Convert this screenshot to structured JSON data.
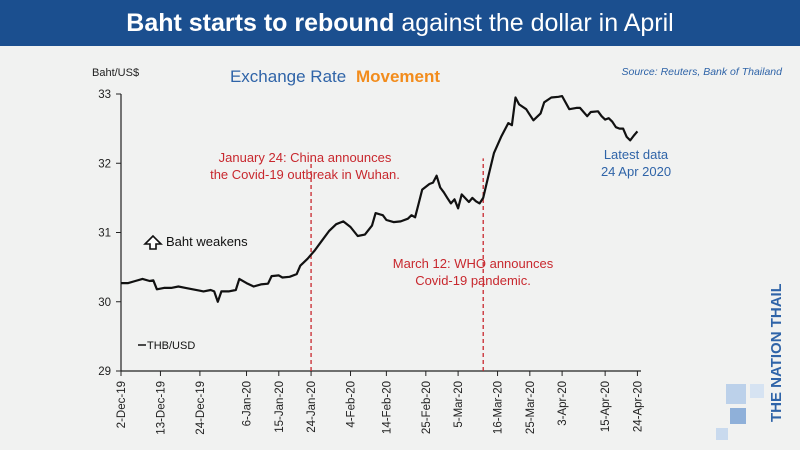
{
  "banner": {
    "title_bold": "Baht starts to rebound",
    "title_rest": "against the dollar in April",
    "background_color": "#1b4f8f"
  },
  "source": "Source: Reuters, Bank of Thailand",
  "logo_text": "THE NATION THAILAND",
  "chart_data": {
    "type": "line",
    "title_part1": "Exchange Rate",
    "title_part2": "Movement",
    "title_colors": [
      "#2f64a8",
      "#f28c1c"
    ],
    "ylabel": "Baht/US$",
    "ylim": [
      29,
      33
    ],
    "yticks": [
      29,
      30,
      31,
      32,
      33
    ],
    "xlim": [
      0,
      145
    ],
    "xticks": [
      {
        "d": 0,
        "label": "2-Dec-19"
      },
      {
        "d": 11,
        "label": "13-Dec-19"
      },
      {
        "d": 22,
        "label": "24-Dec-19"
      },
      {
        "d": 35,
        "label": "6-Jan-20"
      },
      {
        "d": 44,
        "label": "15-Jan-20"
      },
      {
        "d": 53,
        "label": "24-Jan-20"
      },
      {
        "d": 64,
        "label": "4-Feb-20"
      },
      {
        "d": 74,
        "label": "14-Feb-20"
      },
      {
        "d": 85,
        "label": "25-Feb-20"
      },
      {
        "d": 94,
        "label": "5-Mar-20"
      },
      {
        "d": 105,
        "label": "16-Mar-20"
      },
      {
        "d": 114,
        "label": "25-Mar-20"
      },
      {
        "d": 123,
        "label": "3-Apr-20"
      },
      {
        "d": 135,
        "label": "15-Apr-20"
      },
      {
        "d": 144,
        "label": "24-Apr-20"
      }
    ],
    "series": [
      {
        "name": "THB/USD",
        "color": "#111111",
        "points": [
          [
            0,
            30.27
          ],
          [
            2,
            30.27
          ],
          [
            4,
            30.3
          ],
          [
            6,
            30.33
          ],
          [
            8,
            30.3
          ],
          [
            9,
            30.31
          ],
          [
            10,
            30.18
          ],
          [
            12,
            30.2
          ],
          [
            14,
            30.2
          ],
          [
            16,
            30.22
          ],
          [
            18,
            30.2
          ],
          [
            20,
            30.18
          ],
          [
            22,
            30.16
          ],
          [
            23,
            30.15
          ],
          [
            25,
            30.17
          ],
          [
            26,
            30.15
          ],
          [
            27,
            30.0
          ],
          [
            28,
            30.15
          ],
          [
            30,
            30.15
          ],
          [
            32,
            30.17
          ],
          [
            33,
            30.33
          ],
          [
            35,
            30.27
          ],
          [
            37,
            30.22
          ],
          [
            39,
            30.25
          ],
          [
            41,
            30.26
          ],
          [
            42,
            30.37
          ],
          [
            44,
            30.38
          ],
          [
            45,
            30.35
          ],
          [
            47,
            30.36
          ],
          [
            49,
            30.4
          ],
          [
            50,
            30.52
          ],
          [
            52,
            30.62
          ],
          [
            54,
            30.74
          ],
          [
            56,
            30.88
          ],
          [
            58,
            31.02
          ],
          [
            60,
            31.12
          ],
          [
            62,
            31.16
          ],
          [
            64,
            31.08
          ],
          [
            66,
            30.95
          ],
          [
            68,
            30.97
          ],
          [
            70,
            31.1
          ],
          [
            71,
            31.28
          ],
          [
            73,
            31.25
          ],
          [
            74,
            31.18
          ],
          [
            76,
            31.15
          ],
          [
            78,
            31.16
          ],
          [
            80,
            31.2
          ],
          [
            81,
            31.25
          ],
          [
            82,
            31.22
          ],
          [
            83,
            31.42
          ],
          [
            84,
            31.62
          ],
          [
            86,
            31.7
          ],
          [
            87,
            31.72
          ],
          [
            88,
            31.82
          ],
          [
            89,
            31.65
          ],
          [
            90,
            31.58
          ],
          [
            91,
            31.5
          ],
          [
            92,
            31.42
          ],
          [
            93,
            31.48
          ],
          [
            94,
            31.35
          ],
          [
            95,
            31.55
          ],
          [
            97,
            31.44
          ],
          [
            98,
            31.5
          ],
          [
            99,
            31.45
          ],
          [
            100,
            31.42
          ],
          [
            101,
            31.5
          ],
          [
            102,
            31.72
          ],
          [
            104,
            32.15
          ],
          [
            106,
            32.38
          ],
          [
            108,
            32.58
          ],
          [
            109,
            32.55
          ],
          [
            110,
            32.95
          ],
          [
            111,
            32.85
          ],
          [
            113,
            32.78
          ],
          [
            114,
            32.7
          ],
          [
            115,
            32.62
          ],
          [
            117,
            32.72
          ],
          [
            118,
            32.88
          ],
          [
            120,
            32.95
          ],
          [
            122,
            32.96
          ],
          [
            123,
            32.97
          ],
          [
            125,
            32.78
          ],
          [
            127,
            32.8
          ],
          [
            128,
            32.8
          ],
          [
            130,
            32.68
          ],
          [
            131,
            32.74
          ],
          [
            133,
            32.75
          ],
          [
            134,
            32.68
          ],
          [
            135,
            32.63
          ],
          [
            136,
            32.65
          ],
          [
            137,
            32.6
          ],
          [
            138,
            32.52
          ],
          [
            139,
            32.5
          ],
          [
            140,
            32.5
          ],
          [
            141,
            32.38
          ],
          [
            142,
            32.33
          ],
          [
            143,
            32.4
          ],
          [
            144,
            32.46
          ]
        ]
      }
    ],
    "event_lines": [
      {
        "d": 53,
        "label_line1": "January 24: China announces",
        "label_line2": "the Covid-19 outbreak in Wuhan."
      },
      {
        "d": 101,
        "label_line1": "March 12: WHO announces",
        "label_line2": "Covid-19 pandemic."
      }
    ],
    "event_color": "#c8282e",
    "annotation_weakens": "Baht weakens",
    "annotation_latest_line1": "Latest data",
    "annotation_latest_line2": "24 Apr 2020",
    "latest_color": "#2f64a8",
    "legend_label": "THB/USD",
    "legend_position": "bottom-left"
  }
}
